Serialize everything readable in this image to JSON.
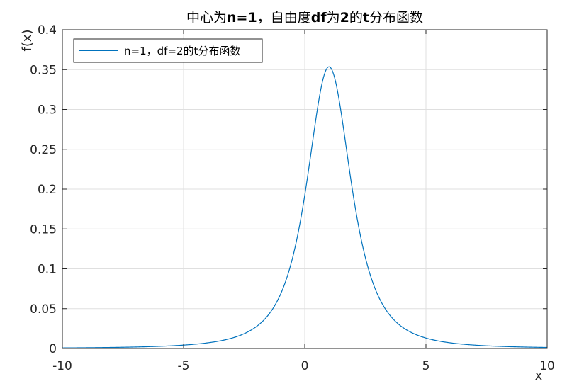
{
  "chart_data": {
    "type": "line",
    "title_parts": [
      {
        "text": "中心为",
        "bold": false
      },
      {
        "text": "n=1",
        "bold": true
      },
      {
        "text": "，自由度",
        "bold": false
      },
      {
        "text": "df",
        "bold": true
      },
      {
        "text": "为",
        "bold": false
      },
      {
        "text": "2",
        "bold": true
      },
      {
        "text": "的",
        "bold": false
      },
      {
        "text": "t",
        "bold": true
      },
      {
        "text": "分布函数",
        "bold": false
      }
    ],
    "xlabel": "x",
    "ylabel": "f(x)",
    "xlim": [
      -10,
      10
    ],
    "ylim": [
      0,
      0.4
    ],
    "xticks": [
      -10,
      -5,
      0,
      5,
      10
    ],
    "xtick_labels": [
      "-10",
      "-5",
      "0",
      "5",
      "10"
    ],
    "yticks": [
      0,
      0.05,
      0.1,
      0.15,
      0.2,
      0.25,
      0.3,
      0.35,
      0.4
    ],
    "ytick_labels": [
      "0",
      "0.05",
      "0.1",
      "0.15",
      "0.2",
      "0.25",
      "0.3",
      "0.35",
      "0.4"
    ],
    "grid": true,
    "legend_position": "top-left",
    "series": [
      {
        "name": "n=1，df=2的t分布函数",
        "color": "#0072BD",
        "x": [
          -10,
          -9,
          -8,
          -7,
          -6,
          -5,
          -4.5,
          -4,
          -3.5,
          -3,
          -2.5,
          -2,
          -1.75,
          -1.5,
          -1.25,
          -1,
          -0.75,
          -0.5,
          -0.25,
          0,
          0.25,
          0.5,
          0.75,
          1,
          1.25,
          1.5,
          1.75,
          2,
          2.25,
          2.5,
          2.75,
          3,
          3.5,
          4,
          4.5,
          5,
          5.5,
          6,
          7,
          8,
          9,
          10
        ],
        "y": [
          0.0007,
          0.001,
          0.0014,
          0.0019,
          0.0028,
          0.0043,
          0.0055,
          0.0071,
          0.0093,
          0.0125,
          0.0171,
          0.024,
          0.0287,
          0.0346,
          0.0421,
          0.0518,
          0.0645,
          0.0808,
          0.1011,
          0.1925,
          0.2402,
          0.2908,
          0.3335,
          0.3536,
          0.3335,
          0.2908,
          0.2402,
          0.1925,
          0.1521,
          0.1199,
          0.0949,
          0.0758,
          0.0499,
          0.0344,
          0.0246,
          0.0183,
          0.014,
          0.011,
          0.0073,
          0.0051,
          0.0037,
          0.0029
        ]
      }
    ]
  }
}
